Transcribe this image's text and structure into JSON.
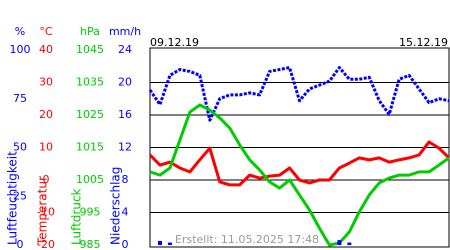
{
  "chart_data": {
    "type": "line",
    "date_labels": [
      "09.12.19",
      "15.12.19"
    ],
    "annotation": "Erstellt: 11.05.2025 17:48",
    "grid": true,
    "axes": [
      {
        "unit": "%",
        "label": "Luftfeuchtigkeit",
        "color": "#0000ff",
        "ylim": [
          0,
          100
        ],
        "yticks": [
          0,
          25,
          50,
          75,
          100
        ]
      },
      {
        "unit": "°C",
        "label": "Temperatur",
        "color": "#ff0000",
        "ylim": [
          -20,
          40
        ],
        "yticks": [
          -20,
          -10,
          0,
          10,
          20,
          30,
          40
        ]
      },
      {
        "unit": "hPa",
        "label": "Luftdruck",
        "color": "#00cc00",
        "ylim": [
          985,
          1045
        ],
        "yticks": [
          985,
          995,
          1005,
          1015,
          1025,
          1035,
          1045
        ]
      },
      {
        "unit": "mm/h",
        "label": "Niederschlag",
        "color": "#0000ff",
        "ylim": [
          0,
          24
        ],
        "yticks": [
          0,
          4,
          8,
          12,
          16,
          20,
          24
        ]
      }
    ],
    "series": [
      {
        "axis": 0,
        "color": "#0000ff",
        "values": [
          79.5,
          72,
          87,
          90,
          89,
          87,
          64,
          75,
          77,
          77,
          78,
          77,
          89,
          90,
          91,
          74,
          80,
          82,
          84,
          91,
          85,
          85,
          86,
          74,
          67,
          85,
          87,
          80,
          73,
          75,
          74
        ]
      },
      {
        "axis": 1,
        "color": "#ff0000",
        "values": [
          7.7,
          4.6,
          5.5,
          3.7,
          2.5,
          6.2,
          9.8,
          -0.6,
          -1.5,
          -1.5,
          1.5,
          0.6,
          1.2,
          1.5,
          3.7,
          0,
          -0.9,
          0,
          0,
          3.7,
          5.2,
          6.8,
          6.2,
          6.8,
          5.5,
          6.2,
          6.8,
          7.7,
          11.7,
          9.8,
          6.8
        ]
      },
      {
        "axis": 2,
        "color": "#00cc00",
        "values": [
          1007.5,
          1006.5,
          1008.7,
          1017.3,
          1025.9,
          1028.1,
          1026.5,
          1024.1,
          1021,
          1015.8,
          1011.2,
          1008.1,
          1004.4,
          1002.5,
          1005,
          1000.4,
          995.8,
          990.2,
          985,
          985.6,
          989,
          995.2,
          1000.4,
          1004.1,
          1005.6,
          1006.5,
          1006.5,
          1007.5,
          1007.5,
          1009.6,
          1011.8
        ]
      },
      {
        "axis": 3,
        "color": "#0000ff",
        "bars": true,
        "values": [
          0,
          0.5,
          0.3,
          0,
          0,
          0,
          0,
          0,
          0,
          0,
          0,
          0,
          0,
          0,
          0,
          0,
          0,
          0,
          0,
          0.6,
          0.3,
          0,
          0,
          0,
          0,
          0,
          0,
          0,
          0,
          0,
          0
        ]
      }
    ]
  }
}
